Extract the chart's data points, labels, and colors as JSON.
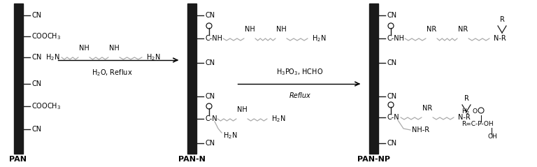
{
  "bg_color": "#ffffff",
  "bar_color": "#1a1a1a",
  "text_color": "#000000",
  "figsize": [
    7.68,
    2.39
  ],
  "dpi": 100,
  "pan_label": "PAN",
  "pan_n_label": "PAN-N",
  "pan_np_label": "PAN-NP",
  "reaction1_top": "H$_2$O, Reflux",
  "reaction2_top": "H$_3$PO$_3$, HCHO",
  "reaction2_bot": "Reflux"
}
